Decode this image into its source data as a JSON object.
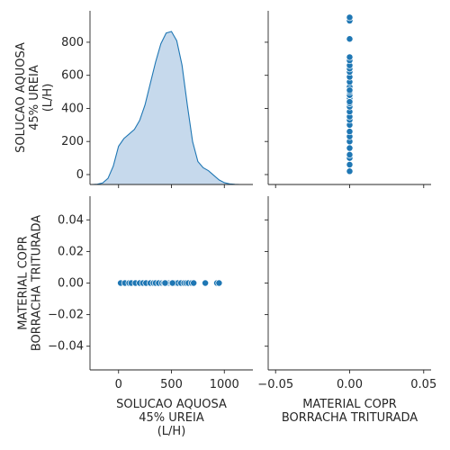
{
  "chart_data": {
    "type": "pairplot",
    "variables": [
      [
        "SOLUCAO AQUOSA",
        "45% UREIA",
        "(L/H)"
      ],
      [
        "MATERIAL COPR",
        "BORRACHA TRITURADA"
      ]
    ],
    "color": "#1f77b4",
    "kde_fill_color": "#c6d9ec",
    "panels": {
      "top_left": {
        "type": "area",
        "kind": "kde",
        "xlim": [
          -270,
          1270
        ],
        "ylim": [
          -60,
          990
        ],
        "yticks": [
          0,
          200,
          400,
          600,
          800
        ],
        "density_curve": {
          "x": [
            -250,
            -200,
            -150,
            -100,
            -50,
            0,
            50,
            100,
            150,
            200,
            250,
            300,
            350,
            400,
            450,
            500,
            550,
            600,
            650,
            700,
            750,
            800,
            850,
            900,
            950,
            1000,
            1050,
            1100,
            1150,
            1200,
            1250
          ],
          "y": [
            0.0,
            0.002,
            0.01,
            0.04,
            0.12,
            0.25,
            0.3,
            0.33,
            0.36,
            0.42,
            0.52,
            0.66,
            0.8,
            0.92,
            0.99,
            1.0,
            0.94,
            0.78,
            0.52,
            0.28,
            0.15,
            0.11,
            0.09,
            0.06,
            0.03,
            0.012,
            0.004,
            0.001,
            0.0,
            0.0,
            0.0
          ]
        }
      },
      "top_right": {
        "type": "scatter",
        "xlim": [
          -0.055,
          0.055
        ],
        "ylim": [
          -60,
          990
        ],
        "x": [
          0,
          0,
          0,
          0,
          0,
          0,
          0,
          0,
          0,
          0,
          0,
          0,
          0,
          0,
          0,
          0,
          0,
          0,
          0,
          0,
          0,
          0,
          0,
          0,
          0,
          0,
          0,
          0,
          0,
          0
        ],
        "y": [
          20,
          60,
          100,
          120,
          160,
          200,
          230,
          260,
          300,
          330,
          350,
          380,
          410,
          430,
          460,
          480,
          500,
          530,
          560,
          590,
          620,
          640,
          660,
          690,
          710,
          820,
          930,
          950,
          440,
          510
        ]
      },
      "bottom_left": {
        "type": "scatter",
        "xlim": [
          -270,
          1270
        ],
        "ylim": [
          -0.055,
          0.055
        ],
        "yticks": [
          -0.04,
          -0.02,
          0.0,
          0.02,
          0.04
        ],
        "x": [
          20,
          60,
          100,
          120,
          160,
          200,
          230,
          260,
          300,
          330,
          350,
          380,
          410,
          430,
          460,
          480,
          500,
          530,
          560,
          590,
          620,
          640,
          660,
          690,
          710,
          820,
          930,
          950,
          440,
          510
        ],
        "y": [
          0,
          0,
          0,
          0,
          0,
          0,
          0,
          0,
          0,
          0,
          0,
          0,
          0,
          0,
          0,
          0,
          0,
          0,
          0,
          0,
          0,
          0,
          0,
          0,
          0,
          0,
          0,
          0,
          0,
          0
        ]
      },
      "bottom_right": {
        "type": "empty",
        "xlim": [
          -0.055,
          0.055
        ],
        "ylim": [
          -0.055,
          0.055
        ]
      }
    },
    "ticks": {
      "row0_y": [
        "0",
        "200",
        "400",
        "600",
        "800"
      ],
      "row1_y": [
        "−0.04",
        "−0.02",
        "0.00",
        "0.02",
        "0.04"
      ],
      "col0_x": [
        "0",
        "500",
        "1000"
      ],
      "col1_x": [
        "−0.05",
        "0.00",
        "0.05"
      ]
    }
  }
}
